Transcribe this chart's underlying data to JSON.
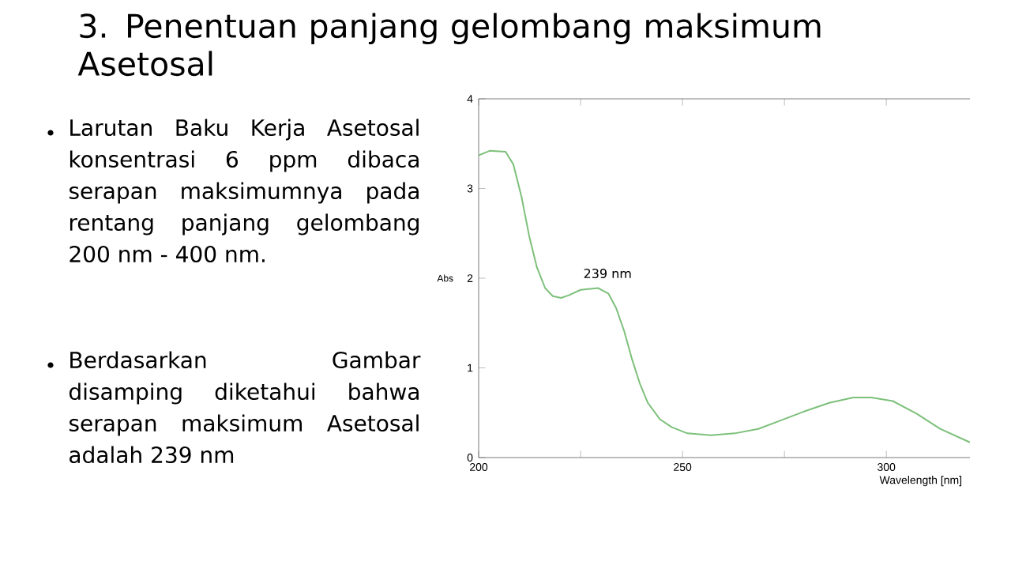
{
  "chart_data": {
    "type": "line",
    "title": "3. Penentuan panjang gelombang maksimum Asetosal",
    "xlabel": "Wavelength [nm]",
    "ylabel": "Abs",
    "x": [
      200,
      202.7,
      206.6,
      208.5,
      210.5,
      212.4,
      214.3,
      216.3,
      218.2,
      220.2,
      222.1,
      225,
      229.3,
      231.8,
      233.7,
      235.7,
      237.6,
      239.5,
      241.5,
      244.4,
      247.3,
      251.2,
      257,
      262.8,
      268.6,
      274.4,
      280.2,
      286,
      291.9,
      296.3,
      301.6,
      307.4,
      313.2,
      320.5
    ],
    "series": [
      {
        "color": "#7dc07a",
        "values": [
          3.37,
          3.42,
          3.41,
          3.27,
          2.91,
          2.47,
          2.12,
          1.89,
          1.8,
          1.78,
          1.81,
          1.87,
          1.89,
          1.83,
          1.67,
          1.41,
          1.1,
          0.83,
          0.61,
          0.43,
          0.34,
          0.27,
          0.25,
          0.27,
          0.32,
          0.42,
          0.52,
          0.61,
          0.67,
          0.67,
          0.63,
          0.49,
          0.32,
          0.17
        ]
      }
    ],
    "xlim": [
      200,
      320.5
    ],
    "ylim": [
      0,
      4
    ],
    "xticks": [
      200,
      {
        "value": 225,
        "label": null
      },
      250,
      {
        "value": 275,
        "label": null
      },
      300
    ],
    "yticks": [
      0,
      1,
      2,
      3,
      4
    ],
    "grid": false,
    "marker": "none",
    "line_style": "solid",
    "annotations": [
      "Larutan Baku Kerja Asetosal konsentrasi 6 ppm dibaca serapan maksimumnya pada rentang panjang gelombang 200 nm - 400 nm.",
      "Berdasarkan Gambar disamping diketahui bahwa serapan maksimum Asetosal adalah 239 nm",
      {
        "text": "239 nm",
        "x": 229.3,
        "y": 1.89
      }
    ]
  }
}
